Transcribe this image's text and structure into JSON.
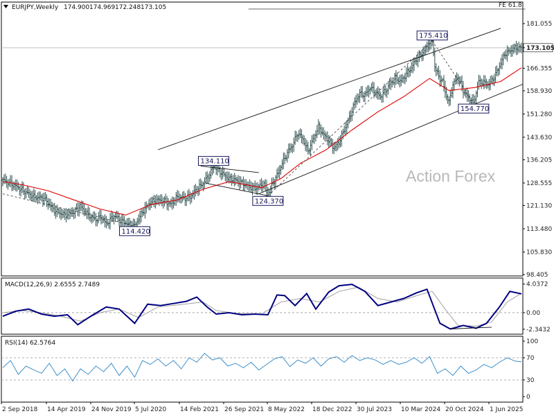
{
  "chart_data": {
    "type": "candlestick",
    "title": "EURJPY,Weekly",
    "ohlc_readout": [
      "174.900",
      "174.969",
      "172.248",
      "173.105"
    ],
    "last_price": "173.105",
    "watermark": "Action Forex",
    "colors": {
      "price": "#2f4f4f",
      "ma": "#dd0000",
      "macd": "#000080",
      "signal": "#a0a0a0",
      "rsi": "#3d8fc9",
      "label_border": "#14145a"
    },
    "x_ticks": [
      "2 Sep 2018",
      "14 Apr 2019",
      "24 Nov 2019",
      "5 Jul 2020",
      "14 Feb 2021",
      "26 Sep 2021",
      "8 May 2022",
      "18 Dec 2022",
      "30 Jul 2023",
      "10 Mar 2024",
      "20 Oct 2024",
      "1 Jun 2025"
    ],
    "price_panel": {
      "y_ticks": [
        "181.055",
        "173.105",
        "166.355",
        "158.930",
        "151.280",
        "143.630",
        "136.205",
        "128.555",
        "121.130",
        "113.480",
        "105.830",
        "98.405"
      ],
      "ylim": [
        98.405,
        181.055
      ],
      "price_path": [
        [
          0,
          129.5
        ],
        [
          8,
          128
        ],
        [
          16,
          126
        ],
        [
          24,
          124
        ],
        [
          32,
          123.5
        ],
        [
          40,
          119.5
        ],
        [
          48,
          118
        ],
        [
          55,
          119
        ],
        [
          60,
          121
        ],
        [
          66,
          118
        ],
        [
          72,
          116.5
        ],
        [
          76,
          117.5
        ],
        [
          80,
          115
        ],
        [
          86,
          117.8
        ],
        [
          92,
          116
        ],
        [
          97,
          115
        ],
        [
          102,
          114.42
        ],
        [
          108,
          119
        ],
        [
          114,
          122.2
        ],
        [
          120,
          123
        ],
        [
          125,
          122.5
        ],
        [
          130,
          121.5
        ],
        [
          135,
          124
        ],
        [
          140,
          123.5
        ],
        [
          145,
          124
        ],
        [
          150,
          126.5
        ],
        [
          155,
          128.5
        ],
        [
          160,
          131.5
        ],
        [
          163,
          134.11
        ],
        [
          166,
          133
        ],
        [
          170,
          131.5
        ],
        [
          175,
          130
        ],
        [
          180,
          129.5
        ],
        [
          185,
          128.5
        ],
        [
          190,
          127.5
        ],
        [
          195,
          126.8
        ],
        [
          198,
          127.5
        ],
        [
          202,
          128.2
        ],
        [
          205,
          124.37
        ],
        [
          208,
          127.8
        ],
        [
          212,
          131
        ],
        [
          216,
          135
        ],
        [
          220,
          138.5
        ],
        [
          224,
          141
        ],
        [
          228,
          145
        ],
        [
          232,
          143
        ],
        [
          236,
          139
        ],
        [
          240,
          143
        ],
        [
          244,
          147
        ],
        [
          248,
          144.5
        ],
        [
          252,
          142.5
        ],
        [
          256,
          140
        ],
        [
          260,
          142
        ],
        [
          264,
          146
        ],
        [
          268,
          150
        ],
        [
          272,
          155
        ],
        [
          276,
          158
        ],
        [
          280,
          157.5
        ],
        [
          284,
          160
        ],
        [
          288,
          158.5
        ],
        [
          292,
          157
        ],
        [
          296,
          159
        ],
        [
          300,
          161.5
        ],
        [
          304,
          163
        ],
        [
          308,
          162
        ],
        [
          312,
          164.5
        ],
        [
          316,
          166.5
        ],
        [
          320,
          169.5
        ],
        [
          324,
          171
        ],
        [
          328,
          173.5
        ],
        [
          332,
          175.41
        ],
        [
          334,
          167
        ],
        [
          337,
          163.5
        ],
        [
          340,
          162
        ],
        [
          342,
          158.5
        ],
        [
          345,
          155
        ],
        [
          348,
          161
        ],
        [
          352,
          163.5
        ],
        [
          356,
          159
        ],
        [
          360,
          156.5
        ],
        [
          364,
          154.77
        ],
        [
          368,
          162
        ],
        [
          372,
          161.5
        ],
        [
          376,
          161
        ],
        [
          380,
          163.5
        ],
        [
          384,
          167
        ],
        [
          388,
          171
        ],
        [
          392,
          172
        ],
        [
          396,
          173
        ],
        [
          401,
          173.105
        ]
      ],
      "ma_path": [
        [
          0,
          129
        ],
        [
          15,
          128
        ],
        [
          35,
          126
        ],
        [
          55,
          123
        ],
        [
          75,
          120
        ],
        [
          95,
          118
        ],
        [
          115,
          121.5
        ],
        [
          135,
          123
        ],
        [
          155,
          126.5
        ],
        [
          175,
          129
        ],
        [
          200,
          127
        ],
        [
          215,
          130
        ],
        [
          230,
          135
        ],
        [
          250,
          139.5
        ],
        [
          270,
          146
        ],
        [
          290,
          152
        ],
        [
          310,
          157
        ],
        [
          330,
          163
        ],
        [
          345,
          159
        ],
        [
          365,
          160
        ],
        [
          385,
          162
        ],
        [
          401,
          166.5
        ]
      ],
      "channel_upper": [
        [
          120,
          139.5
        ],
        [
          385,
          179.5
        ]
      ],
      "channel_lower": [
        [
          198,
          125
        ],
        [
          410,
          162.5
        ]
      ],
      "triangle_upper": [
        [
          153,
          134.11
        ],
        [
          198,
          132
        ]
      ],
      "triangle_lower": [
        [
          157,
          128.5
        ],
        [
          205,
          124.37
        ]
      ],
      "dash_lines": [
        [
          [
            0,
            125
          ],
          [
            102,
            114.42
          ]
        ],
        [
          [
            205,
            124.37
          ],
          [
            332,
            175.41
          ]
        ],
        [
          [
            332,
            175.41
          ],
          [
            364,
            154.77
          ]
        ]
      ],
      "fe_level": 185.16,
      "fe_line": [
        [
          190,
          185.16
        ],
        [
          404,
          185.16
        ]
      ],
      "fe_label": "FE 61.8",
      "annotations": [
        {
          "text": "114.420",
          "x": 102,
          "y": 114.42,
          "pos": "below"
        },
        {
          "text": "134.110",
          "x": 163,
          "y": 134.11,
          "pos": "above"
        },
        {
          "text": "124.370",
          "x": 205,
          "y": 124.37,
          "pos": "below"
        },
        {
          "text": "175.410",
          "x": 332,
          "y": 175.41,
          "pos": "above"
        },
        {
          "text": "154.770",
          "x": 364,
          "y": 154.77,
          "pos": "below"
        }
      ]
    },
    "macd_panel": {
      "title": "MACD(12,26,9) 2.6555 2.7489",
      "y_ticks": [
        "4.0372",
        "0.00",
        "-2.3432"
      ],
      "ylim": [
        -2.45,
        4.3
      ],
      "macd_path": [
        [
          0,
          -0.5
        ],
        [
          10,
          0.2
        ],
        [
          20,
          0.5
        ],
        [
          30,
          -0.2
        ],
        [
          40,
          -0.5
        ],
        [
          50,
          -0.3
        ],
        [
          58,
          -1.7
        ],
        [
          68,
          -0.5
        ],
        [
          80,
          0.8
        ],
        [
          90,
          0.5
        ],
        [
          102,
          -1.5
        ],
        [
          112,
          1.2
        ],
        [
          122,
          1.0
        ],
        [
          132,
          1.3
        ],
        [
          142,
          1.6
        ],
        [
          150,
          2.2
        ],
        [
          158,
          0.8
        ],
        [
          165,
          -0.2
        ],
        [
          175,
          0.0
        ],
        [
          185,
          -0.3
        ],
        [
          195,
          -0.2
        ],
        [
          205,
          -0.3
        ],
        [
          212,
          2.5
        ],
        [
          218,
          2.4
        ],
        [
          226,
          1.0
        ],
        [
          235,
          2.7
        ],
        [
          242,
          0.5
        ],
        [
          252,
          2.9
        ],
        [
          260,
          3.8
        ],
        [
          270,
          4.0
        ],
        [
          280,
          3.0
        ],
        [
          290,
          1.0
        ],
        [
          300,
          1.5
        ],
        [
          310,
          2.0
        ],
        [
          320,
          2.8
        ],
        [
          328,
          3.3
        ],
        [
          338,
          -1.5
        ],
        [
          346,
          -2.3
        ],
        [
          356,
          -1.8
        ],
        [
          366,
          -2.2
        ],
        [
          374,
          -1.5
        ],
        [
          384,
          0.8
        ],
        [
          392,
          3.0
        ],
        [
          401,
          2.6555
        ]
      ],
      "signal_path": [
        [
          0,
          0
        ],
        [
          15,
          0.3
        ],
        [
          30,
          0.0
        ],
        [
          45,
          -0.5
        ],
        [
          60,
          -1.2
        ],
        [
          75,
          0.0
        ],
        [
          90,
          0.5
        ],
        [
          105,
          -0.7
        ],
        [
          120,
          0.8
        ],
        [
          140,
          1.2
        ],
        [
          155,
          1.5
        ],
        [
          165,
          0.3
        ],
        [
          180,
          -0.1
        ],
        [
          200,
          -0.2
        ],
        [
          215,
          1.5
        ],
        [
          230,
          2.0
        ],
        [
          245,
          1.5
        ],
        [
          260,
          3.0
        ],
        [
          275,
          3.6
        ],
        [
          290,
          2.0
        ],
        [
          305,
          1.5
        ],
        [
          320,
          2.4
        ],
        [
          332,
          3.0
        ],
        [
          342,
          0.5
        ],
        [
          352,
          -1.8
        ],
        [
          366,
          -1.9
        ],
        [
          378,
          -1.3
        ],
        [
          390,
          1.5
        ],
        [
          401,
          2.7489
        ]
      ],
      "divergence_line": [
        [
          346,
          -2.3
        ],
        [
          378,
          -2.05
        ]
      ]
    },
    "rsi_panel": {
      "title": "RSI(14) 62.5764",
      "y_ticks": [
        "100",
        "70",
        "30",
        "0"
      ],
      "ylim": [
        0,
        100
      ],
      "levels": [
        70,
        30
      ],
      "rsi_path": [
        [
          0,
          52
        ],
        [
          6,
          65
        ],
        [
          12,
          40
        ],
        [
          18,
          55
        ],
        [
          24,
          48
        ],
        [
          30,
          42
        ],
        [
          36,
          60
        ],
        [
          42,
          38
        ],
        [
          48,
          50
        ],
        [
          54,
          28
        ],
        [
          60,
          50
        ],
        [
          66,
          40
        ],
        [
          72,
          55
        ],
        [
          78,
          45
        ],
        [
          84,
          60
        ],
        [
          90,
          38
        ],
        [
          96,
          55
        ],
        [
          102,
          35
        ],
        [
          108,
          65
        ],
        [
          114,
          58
        ],
        [
          120,
          68
        ],
        [
          126,
          55
        ],
        [
          132,
          65
        ],
        [
          138,
          50
        ],
        [
          144,
          70
        ],
        [
          150,
          62
        ],
        [
          156,
          78
        ],
        [
          162,
          66
        ],
        [
          168,
          70
        ],
        [
          174,
          55
        ],
        [
          180,
          60
        ],
        [
          186,
          52
        ],
        [
          192,
          62
        ],
        [
          198,
          48
        ],
        [
          204,
          58
        ],
        [
          210,
          68
        ],
        [
          216,
          72
        ],
        [
          222,
          54
        ],
        [
          228,
          66
        ],
        [
          234,
          60
        ],
        [
          240,
          70
        ],
        [
          246,
          55
        ],
        [
          252,
          68
        ],
        [
          258,
          72
        ],
        [
          264,
          62
        ],
        [
          270,
          74
        ],
        [
          276,
          65
        ],
        [
          282,
          70
        ],
        [
          288,
          66
        ],
        [
          294,
          58
        ],
        [
          300,
          65
        ],
        [
          306,
          58
        ],
        [
          312,
          62
        ],
        [
          318,
          70
        ],
        [
          324,
          60
        ],
        [
          330,
          72
        ],
        [
          336,
          42
        ],
        [
          342,
          50
        ],
        [
          348,
          38
        ],
        [
          354,
          55
        ],
        [
          360,
          42
        ],
        [
          366,
          48
        ],
        [
          372,
          58
        ],
        [
          378,
          52
        ],
        [
          384,
          62
        ],
        [
          390,
          70
        ],
        [
          396,
          64
        ],
        [
          401,
          62.5764
        ]
      ]
    }
  }
}
